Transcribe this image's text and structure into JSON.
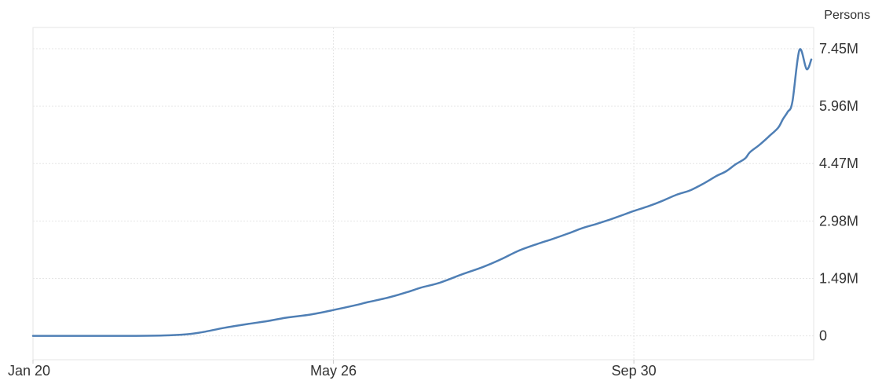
{
  "chart_data": {
    "type": "line",
    "ylabel": "Persons",
    "x_tick_labels": [
      "Jan 20",
      "May 26",
      "Sep 30"
    ],
    "y_tick_labels": [
      "0",
      "1.49M",
      "2.98M",
      "4.47M",
      "5.96M",
      "7.45M"
    ],
    "y_ticks": [
      0,
      1490000,
      2980000,
      4470000,
      5960000,
      7450000
    ],
    "xlim": [
      "2020-01-20",
      "2020-12-15"
    ],
    "ylim": [
      -620000,
      8000000
    ],
    "grid": true,
    "line_color": "#4f7fb5",
    "series": [
      {
        "x": [
          "2020-01-20",
          "2020-02-01",
          "2020-02-15",
          "2020-03-01",
          "2020-03-15",
          "2020-03-25",
          "2020-04-01",
          "2020-04-10",
          "2020-04-20",
          "2020-04-28",
          "2020-05-06",
          "2020-05-16",
          "2020-05-26",
          "2020-06-04",
          "2020-06-10",
          "2020-06-18",
          "2020-06-26",
          "2020-07-02",
          "2020-07-10",
          "2020-07-20",
          "2020-07-28",
          "2020-08-05",
          "2020-08-12",
          "2020-08-20",
          "2020-08-26",
          "2020-09-02",
          "2020-09-08",
          "2020-09-14",
          "2020-09-20",
          "2020-09-26",
          "2020-09-30",
          "2020-10-06",
          "2020-10-12",
          "2020-10-18",
          "2020-10-24",
          "2020-10-30",
          "2020-11-04",
          "2020-11-08",
          "2020-11-12",
          "2020-11-16",
          "2020-11-18",
          "2020-11-22",
          "2020-11-26",
          "2020-11-30",
          "2020-12-02",
          "2020-12-04",
          "2020-12-06",
          "2020-12-09",
          "2020-12-12",
          "2020-12-14"
        ],
        "values": [
          0,
          0,
          0,
          0,
          10000,
          40000,
          100000,
          210000,
          310000,
          380000,
          470000,
          550000,
          670000,
          790000,
          880000,
          990000,
          1130000,
          1250000,
          1380000,
          1610000,
          1780000,
          1990000,
          2200000,
          2380000,
          2500000,
          2650000,
          2790000,
          2900000,
          3020000,
          3150000,
          3240000,
          3360000,
          3500000,
          3660000,
          3780000,
          3970000,
          4150000,
          4270000,
          4450000,
          4600000,
          4760000,
          4950000,
          5170000,
          5400000,
          5620000,
          5810000,
          6070000,
          7420000,
          6920000,
          7170000
        ]
      }
    ]
  }
}
